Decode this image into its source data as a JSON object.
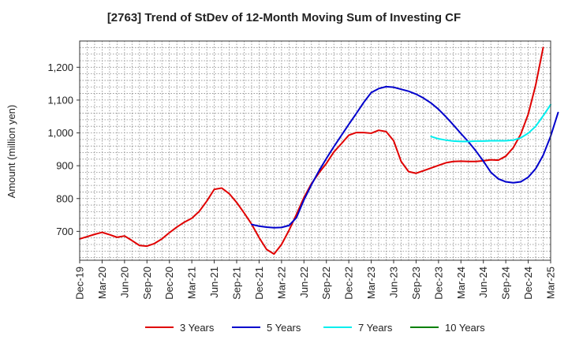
{
  "chart_data": {
    "type": "line",
    "title": "[2763]  Trend of StDev of 12-Month Moving Sum of Investing CF",
    "xlabel": "",
    "ylabel": "Amount (million yen)",
    "ylim": [
      612,
      1280
    ],
    "yticks": [
      700,
      800,
      900,
      1000,
      1100,
      1200
    ],
    "ytick_labels": [
      "700",
      "800",
      "900",
      "1,000",
      "1,100",
      "1,200"
    ],
    "x_tick_labels": [
      "Dec-19",
      "Mar-20",
      "Jun-20",
      "Sep-20",
      "Dec-20",
      "Mar-21",
      "Jun-21",
      "Sep-21",
      "Dec-21",
      "Mar-22",
      "Jun-22",
      "Sep-22",
      "Dec-22",
      "Mar-23",
      "Jun-23",
      "Sep-23",
      "Dec-23",
      "Mar-24",
      "Jun-24",
      "Sep-24",
      "Dec-24",
      "Mar-25"
    ],
    "grid": true,
    "legend_position": "bottom",
    "series": [
      {
        "name": "3 Years",
        "color": "#e00000",
        "start_index": 0,
        "values": [
          677,
          684,
          691,
          697,
          690,
          682,
          686,
          672,
          657,
          655,
          663,
          677,
          696,
          713,
          728,
          740,
          761,
          792,
          828,
          832,
          815,
          788,
          756,
          722,
          681,
          645,
          631,
          660,
          703,
          752,
          803,
          845,
          878,
          907,
          942,
          967,
          993,
          1001,
          1001,
          999,
          1008,
          1004,
          976,
          913,
          882,
          877,
          885,
          893,
          901,
          909,
          913,
          914,
          913,
          913,
          915,
          918,
          917,
          929,
          955,
          996,
          1057,
          1146,
          1260
        ]
      },
      {
        "name": "5 Years",
        "color": "#0000cc",
        "start_index": 23,
        "values": [
          721,
          716,
          713,
          711,
          712,
          718,
          742,
          796,
          842,
          884,
          922,
          958,
          992,
          1026,
          1059,
          1093,
          1123,
          1135,
          1141,
          1139,
          1133,
          1127,
          1118,
          1106,
          1091,
          1072,
          1049,
          1024,
          998,
          973,
          945,
          914,
          880,
          860,
          851,
          848,
          851,
          865,
          891,
          932,
          990,
          1062
        ]
      },
      {
        "name": "7 Years",
        "color": "#00eeee",
        "start_index": 47,
        "values": [
          989,
          982,
          978,
          975,
          974,
          974,
          975,
          975,
          976,
          976,
          976,
          978,
          985,
          999,
          1020,
          1052,
          1086
        ]
      },
      {
        "name": "10 Years",
        "color": "#008000",
        "start_index": 0,
        "values": []
      }
    ]
  }
}
